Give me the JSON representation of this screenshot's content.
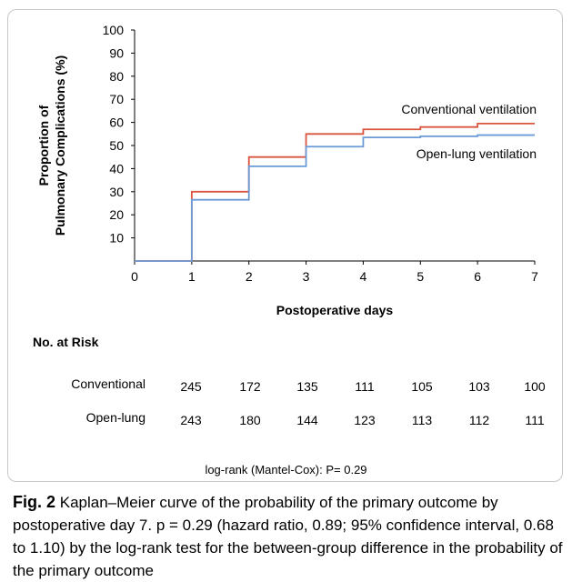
{
  "chart_data": {
    "type": "line",
    "step": true,
    "xlabel": "Postoperative days",
    "ylabel_line1": "Proportion of",
    "ylabel_line2": "Pulmonary Complications (%)",
    "xlim": [
      0,
      7
    ],
    "ylim": [
      0,
      100
    ],
    "x_ticks": [
      0,
      1,
      2,
      3,
      4,
      5,
      6,
      7
    ],
    "y_ticks": [
      10,
      20,
      30,
      40,
      50,
      60,
      70,
      80,
      90,
      100
    ],
    "grid": false,
    "series": [
      {
        "name": "Conventional ventilation",
        "color": "#d9553f",
        "x": [
          0,
          1,
          2,
          3,
          4,
          5,
          6,
          7
        ],
        "y": [
          0,
          30,
          45,
          55,
          57,
          58,
          59.5,
          59.5
        ]
      },
      {
        "name": "Open-lung ventilation",
        "color": "#6b9bd6",
        "x": [
          0,
          1,
          2,
          3,
          4,
          5,
          6,
          7
        ],
        "y": [
          0,
          26.5,
          41,
          49.5,
          53.5,
          54,
          54.5,
          54.5
        ]
      }
    ]
  },
  "risk_table": {
    "title": "No. at Risk",
    "rows": [
      {
        "label": "Conventional",
        "values": [
          245,
          172,
          135,
          111,
          105,
          103,
          100
        ]
      },
      {
        "label": "Open-lung",
        "values": [
          243,
          180,
          144,
          123,
          113,
          112,
          111
        ]
      }
    ]
  },
  "footer_stat": "log-rank (Mantel-Cox): P= 0.29",
  "caption": {
    "label": "Fig. 2",
    "text": "Kaplan–Meier curve of the probability of the primary outcome by postoperative day 7. p = 0.29 (hazard ratio, 0.89; 95% confidence interval, 0.68 to 1.10) by the log-rank test for the between-group difference in the probability of the primary outcome"
  }
}
